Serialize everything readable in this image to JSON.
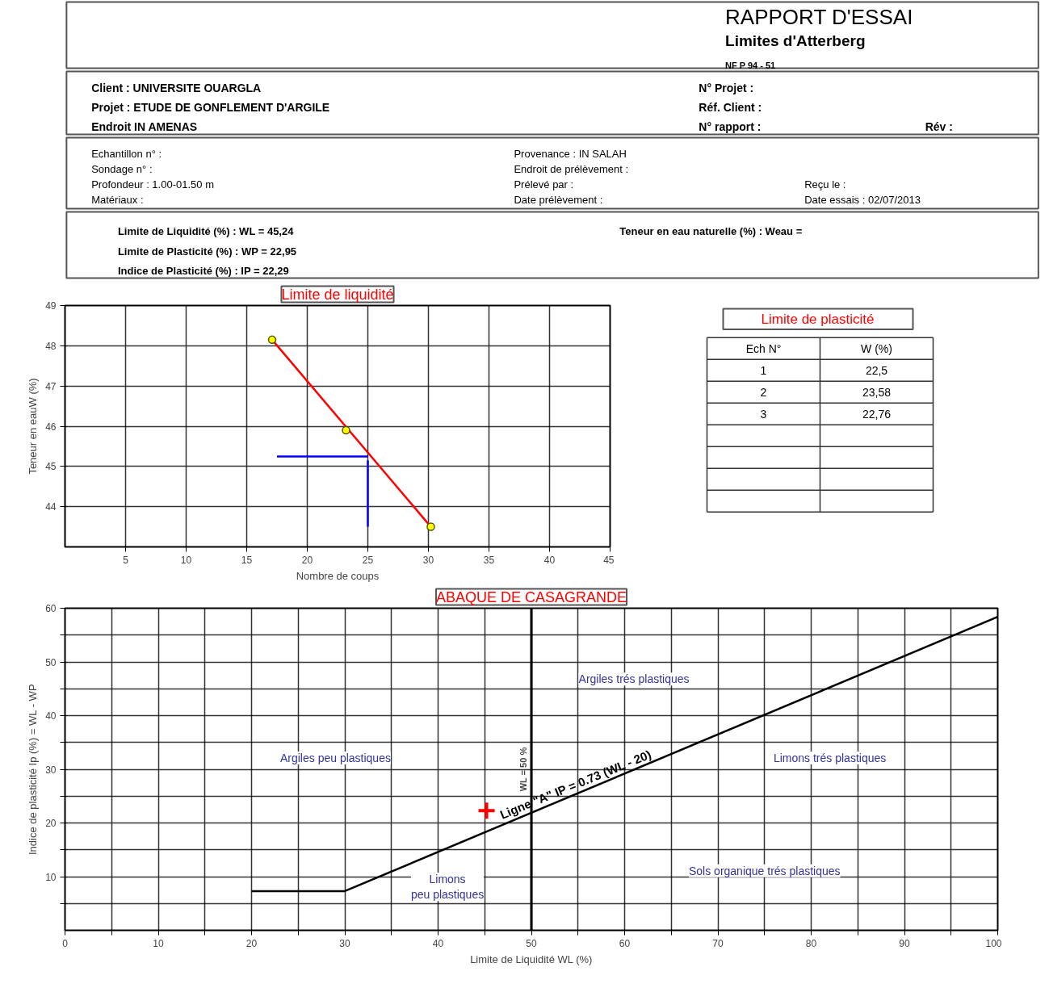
{
  "chart_data": [
    {
      "type": "other",
      "title": "RAPPORT D'ESSAI",
      "subtitle": "Limites d'Atterberg",
      "annotations": [
        "NF P 94 - 51",
        "Client : UNIVERSITE OUARGLA",
        "Projet : ETUDE DE GONFLEMENT D'ARGILE",
        "Endroit  IN AMENAS",
        "N° Projet :",
        "Réf. Client :",
        "N° rapport :",
        "Rév :",
        "Echantillon n° :",
        "Sondage n° :",
        "Profondeur : 1.00-01.50 m",
        "Matériaux :",
        "Provenance : IN SALAH",
        "Endroit de prélèvement :",
        "Prélevé par :",
        "Date prélèvement :",
        "Reçu le :",
        "Date essais :  02/07/2013",
        "Limite de Liquidité (%) :  WL = 45,24",
        "Limite de Plasticité (%) :  WP = 22,95",
        "Indice de Plasticité (%) :  IP = 22,29",
        "Teneur en eau naturelle (%) :  Weau ="
      ]
    },
    {
      "type": "scatter",
      "title": "Limite de liquidité",
      "xlabel": "Nombre de coups",
      "ylabel": "Teneur en eauW (%)",
      "xlim": [
        0,
        45
      ],
      "ylim": [
        43,
        49
      ],
      "xticks": [
        5,
        10,
        15,
        20,
        25,
        30,
        35,
        40,
        45
      ],
      "yticks": [
        44,
        45,
        46,
        47,
        48,
        49
      ],
      "grid": true,
      "series": [
        {
          "type": "line",
          "color": "#ff0000",
          "marker": "none",
          "x": [
            17.1,
            30.2
          ],
          "values": [
            48.15,
            43.5
          ]
        },
        {
          "type": "scatter",
          "color": "#ffff00",
          "marker": "circle",
          "x": [
            17.1,
            23.2,
            30.2
          ],
          "values": [
            48.15,
            45.9,
            43.5
          ]
        },
        {
          "type": "line",
          "color": "#0000ff",
          "marker": "none",
          "x": [
            25,
            25
          ],
          "values": [
            43.5,
            45.15
          ]
        },
        {
          "type": "line",
          "color": "#0000ff",
          "marker": "none",
          "x": [
            25,
            17.5
          ],
          "values": [
            45.25,
            45.25
          ]
        }
      ]
    },
    {
      "type": "other",
      "title": "Limite de plasticité",
      "categories": [
        "Ech N°",
        "W (%)"
      ],
      "annotations": [
        "1",
        "22,5",
        "2",
        "23,58",
        "3",
        "22,76"
      ]
    },
    {
      "type": "line",
      "title": "ABAQUE DE CASAGRANDE",
      "xlabel": "Limite de Liquidité WL (%)",
      "ylabel": "Indice de plasticité Ip (%) = WL - WP",
      "xlim": [
        0,
        100
      ],
      "ylim": [
        0,
        60
      ],
      "xticks": [
        0,
        {
          "value": 5,
          "label": null
        },
        10,
        {
          "value": 15,
          "label": null
        },
        20,
        {
          "value": 25,
          "label": null
        },
        30,
        {
          "value": 35,
          "label": null
        },
        40,
        {
          "value": 45,
          "label": null
        },
        50,
        {
          "value": 55,
          "label": null
        },
        60,
        {
          "value": 65,
          "label": null
        },
        70,
        {
          "value": 75,
          "label": null
        },
        80,
        {
          "value": 85,
          "label": null
        },
        90,
        {
          "value": 95,
          "label": null
        },
        100
      ],
      "yticks": [
        {
          "value": 5,
          "label": null
        },
        10,
        {
          "value": 15,
          "label": null
        },
        20,
        {
          "value": 25,
          "label": null
        },
        30,
        {
          "value": 35,
          "label": null
        },
        40,
        {
          "value": 45,
          "label": null
        },
        50,
        {
          "value": 55,
          "label": null
        },
        60
      ],
      "grid": true,
      "series": [
        {
          "type": "line",
          "name": "Ligne \"A\"  IP = 0.73 (WL - 20)",
          "color": "#000000",
          "marker": "none",
          "x": [
            20,
            30,
            100
          ],
          "values": [
            7.3,
            7.3,
            58.4
          ]
        },
        {
          "type": "scatter",
          "color": "#ff0000",
          "marker": "cross",
          "x": [
            45.2
          ],
          "values": [
            22.3
          ]
        }
      ],
      "ref_lines": [
        {
          "axis": "x",
          "value": 50,
          "label": "WL = 50 %",
          "color": "#000000"
        }
      ],
      "annotations": [
        "Argiles trés plastiques",
        "Argiles peu plastiques",
        "Limons trés plastiques",
        "Sols organique trés plastiques",
        "Limons\npeu plastiques"
      ]
    }
  ]
}
